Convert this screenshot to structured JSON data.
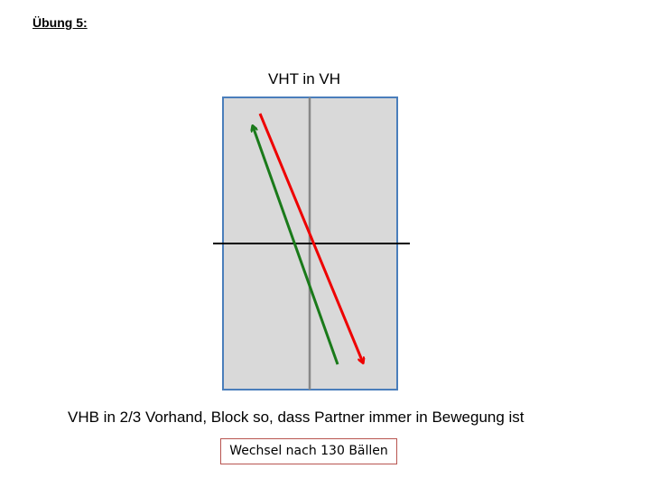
{
  "header": {
    "title": "Übung 5:"
  },
  "diagram": {
    "top_label": "VHT in VH",
    "description": "VHB in 2/3 Vorhand, Block so, dass Partner immer in Bewegung ist",
    "note": "Wechsel nach 130 Bällen"
  }
}
